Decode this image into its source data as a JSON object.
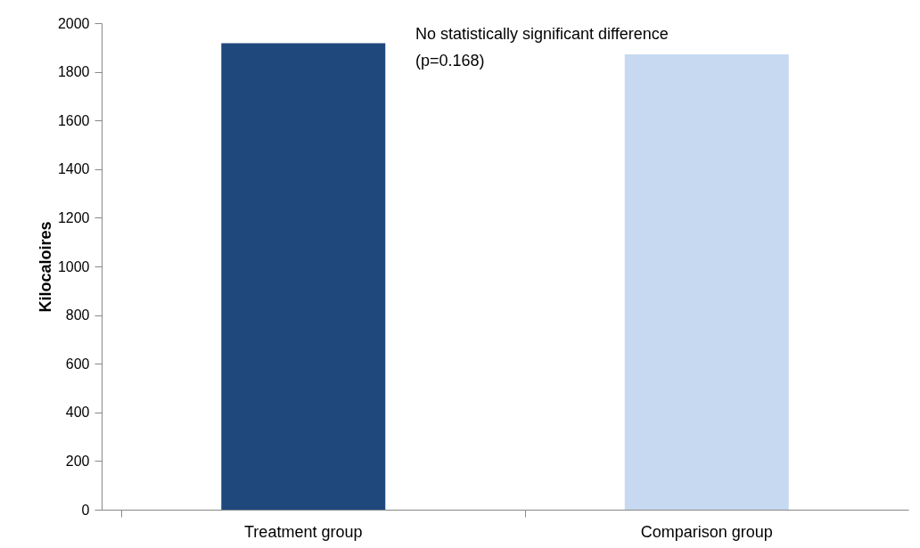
{
  "chart_data": {
    "type": "bar",
    "ylabel": "Kilocaloires",
    "categories": [
      "Treatment group",
      "Comparison group"
    ],
    "values": [
      1918,
      1872
    ],
    "colors": [
      "#1f497d",
      "#c6d9f1"
    ],
    "ylim": [
      0,
      2000
    ],
    "yticks": [
      0,
      200,
      400,
      600,
      800,
      1000,
      1200,
      1400,
      1600,
      1800,
      2000
    ],
    "grid": false,
    "annotations": [
      "No statistically significant difference\n(p=0.168)"
    ]
  }
}
